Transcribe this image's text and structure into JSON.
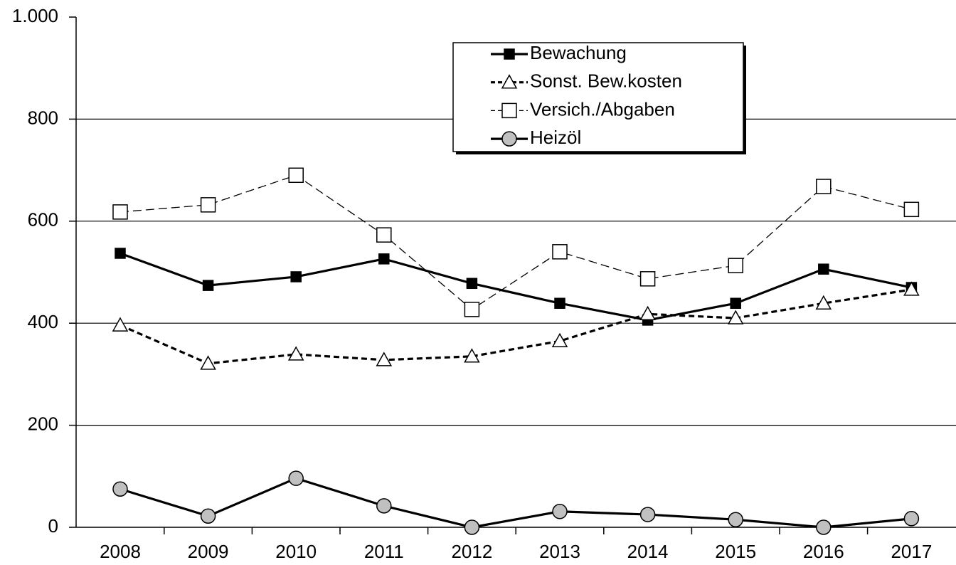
{
  "chart_data": {
    "type": "line",
    "categories": [
      "2008",
      "2009",
      "2010",
      "2011",
      "2012",
      "2013",
      "2014",
      "2015",
      "2016",
      "2017"
    ],
    "series": [
      {
        "name": "Bewachung",
        "color": "#000000",
        "line_style": "solid",
        "marker": "square",
        "marker_fill": "#000000",
        "values": [
          537,
          474,
          491,
          526,
          478,
          439,
          406,
          439,
          506,
          470
        ]
      },
      {
        "name": "Sonst. Bew.kosten",
        "color": "#000000",
        "line_style": "dashed",
        "marker": "triangle",
        "marker_fill": "#ffffff",
        "values": [
          396,
          321,
          339,
          328,
          335,
          365,
          418,
          410,
          439,
          466
        ]
      },
      {
        "name": "Versich./Abgaben",
        "color": "#000000",
        "line_style": "thin-dashed",
        "marker": "square",
        "marker_fill": "#ffffff",
        "values": [
          618,
          632,
          690,
          573,
          427,
          540,
          487,
          513,
          668,
          623
        ]
      },
      {
        "name": "Heizöl",
        "color": "#000000",
        "line_style": "solid",
        "marker": "circle",
        "marker_fill": "#c0c0c0",
        "values": [
          75,
          22,
          96,
          42,
          0,
          31,
          25,
          15,
          0,
          17
        ]
      }
    ],
    "ylim": [
      0,
      1000
    ],
    "yticks": [
      0,
      200,
      400,
      600,
      800,
      {
        "value": 1000,
        "label": "1.000"
      }
    ],
    "grid": true,
    "legend": "top-right"
  }
}
